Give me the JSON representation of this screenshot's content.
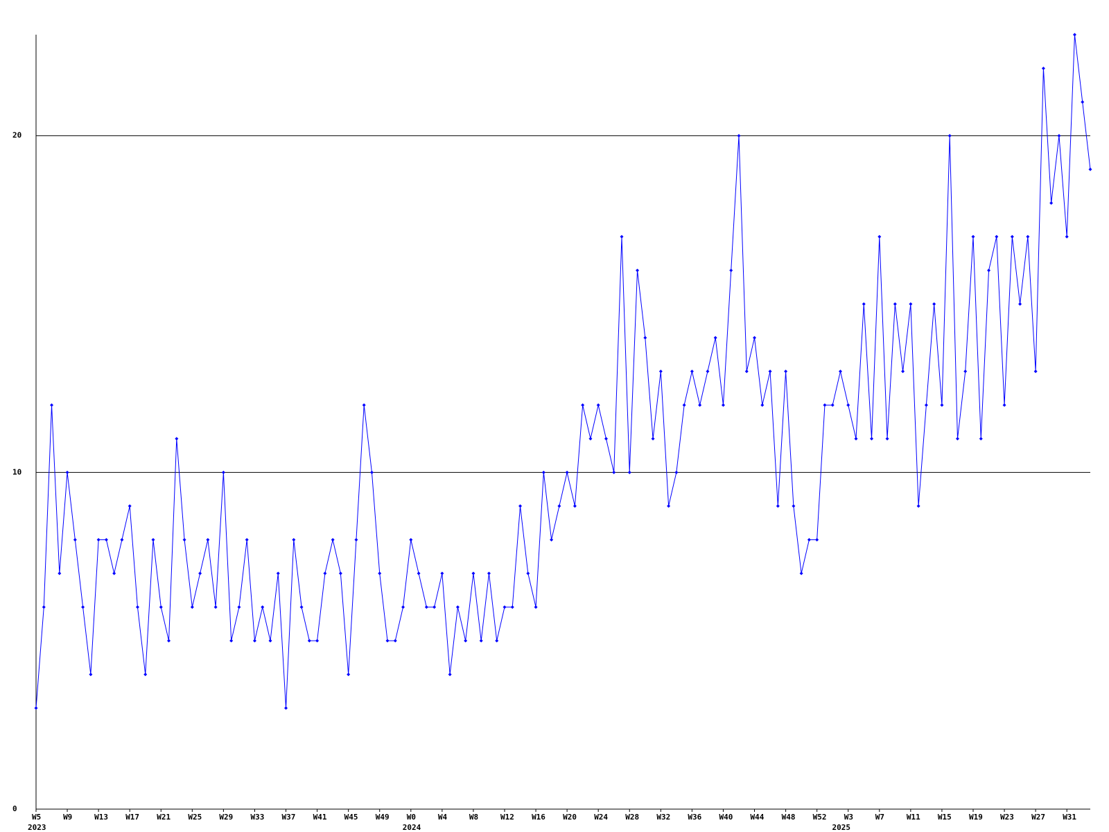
{
  "chart_data": {
    "type": "line",
    "categories": [
      "W5",
      null,
      null,
      null,
      "W9",
      null,
      null,
      null,
      "W13",
      null,
      null,
      null,
      "W17",
      null,
      null,
      null,
      "W21",
      null,
      null,
      null,
      "W25",
      null,
      null,
      null,
      "W29",
      null,
      null,
      null,
      "W33",
      null,
      null,
      null,
      "W37",
      null,
      null,
      null,
      "W41",
      null,
      null,
      null,
      "W45",
      null,
      null,
      null,
      "W49",
      null,
      null,
      null,
      "W0",
      null,
      null,
      null,
      "W4",
      null,
      null,
      null,
      "W8",
      null,
      null,
      null,
      "W12",
      null,
      null,
      null,
      "W16",
      null,
      null,
      null,
      "W20",
      null,
      null,
      null,
      "W24",
      null,
      null,
      null,
      "W28",
      null,
      null,
      null,
      "W32",
      null,
      null,
      null,
      "W36",
      null,
      null,
      null,
      "W40",
      null,
      null,
      null,
      "W44",
      null,
      null,
      null,
      "W48",
      null,
      null,
      null,
      "W52",
      null,
      null,
      null,
      "W3",
      null,
      null,
      null,
      "W7",
      null,
      null,
      null,
      "W11",
      null,
      null,
      null,
      "W15",
      null,
      null,
      null,
      "W19",
      null,
      null,
      null,
      "W23",
      null,
      null,
      null,
      "W27",
      null,
      null,
      null,
      "W31",
      null,
      null,
      null
    ],
    "years": [
      "2023",
      null,
      null,
      null,
      null,
      null,
      null,
      null,
      null,
      null,
      null,
      null,
      null,
      null,
      null,
      null,
      null,
      null,
      null,
      null,
      null,
      null,
      null,
      null,
      null,
      null,
      null,
      null,
      null,
      null,
      null,
      null,
      null,
      null,
      null,
      null,
      null,
      null,
      null,
      null,
      null,
      null,
      null,
      null,
      null,
      null,
      null,
      null,
      "2024",
      null,
      null,
      null,
      null,
      null,
      null,
      null,
      null,
      null,
      null,
      null,
      null,
      null,
      null,
      null,
      null,
      null,
      null,
      null,
      null,
      null,
      null,
      null,
      null,
      null,
      null,
      null,
      null,
      null,
      null,
      null,
      null,
      null,
      null,
      null,
      null,
      null,
      null,
      null,
      null,
      null,
      null,
      null,
      null,
      null,
      null,
      null,
      null,
      null,
      null,
      null,
      null,
      null,
      null,
      "2025",
      null,
      null,
      null,
      null,
      null,
      null,
      null,
      null,
      null,
      null,
      null,
      null,
      null,
      null,
      null,
      null,
      null,
      null,
      null,
      null,
      null,
      null,
      null,
      null,
      null,
      null,
      null,
      null,
      null,
      null,
      null,
      null,
      null,
      null
    ],
    "values": [
      3,
      6,
      12,
      7,
      10,
      8,
      6,
      4,
      8,
      8,
      7,
      8,
      9,
      6,
      4,
      8,
      6,
      5,
      11,
      8,
      6,
      7,
      8,
      6,
      10,
      5,
      6,
      8,
      5,
      6,
      5,
      7,
      3,
      8,
      6,
      5,
      5,
      7,
      8,
      7,
      4,
      8,
      12,
      10,
      7,
      5,
      5,
      6,
      8,
      7,
      6,
      6,
      7,
      4,
      6,
      5,
      7,
      5,
      7,
      5,
      6,
      6,
      9,
      7,
      6,
      10,
      8,
      9,
      10,
      9,
      12,
      11,
      12,
      11,
      10,
      17,
      10,
      16,
      14,
      11,
      13,
      9,
      10,
      12,
      13,
      12,
      13,
      14,
      12,
      16,
      20,
      13,
      14,
      12,
      13,
      9,
      13,
      9,
      7,
      8,
      8,
      12,
      12,
      13,
      12,
      11,
      15,
      11,
      17,
      11,
      15,
      13,
      15,
      9,
      12,
      15,
      12,
      20,
      11,
      13,
      17,
      11,
      16,
      17,
      12,
      17,
      15,
      17,
      13,
      22,
      18,
      20,
      17,
      23,
      21,
      19
    ],
    "color": "#0000ff",
    "ylim": [
      0,
      23
    ],
    "yticks": [
      0,
      10,
      20
    ],
    "grid": true
  }
}
